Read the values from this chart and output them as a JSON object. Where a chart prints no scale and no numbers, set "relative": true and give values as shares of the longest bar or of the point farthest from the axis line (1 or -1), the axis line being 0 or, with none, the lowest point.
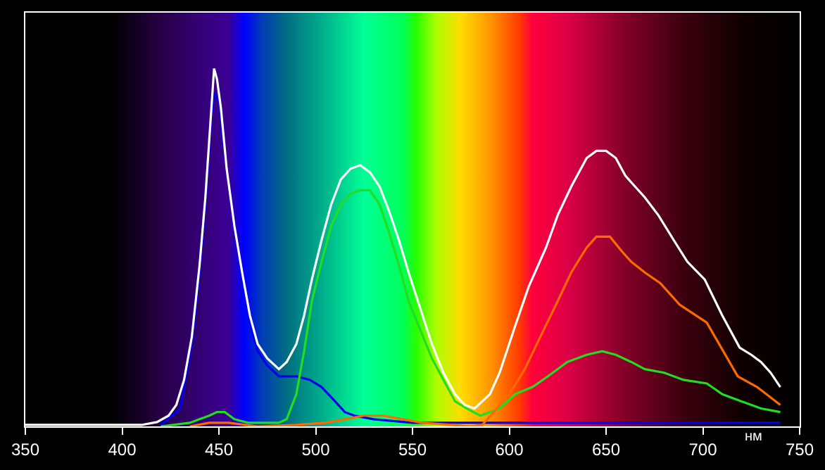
{
  "chart_data": {
    "type": "line",
    "relative": true,
    "xlabel": "нм",
    "xlim": [
      350,
      750
    ],
    "xticks": [
      350,
      400,
      450,
      500,
      550,
      600,
      650,
      700,
      750
    ],
    "grid": false,
    "marker": "none",
    "line_style": "solid",
    "series": [
      {
        "color": "#ffffff",
        "x": [
          350,
          410,
          418,
          424,
          428,
          432,
          436,
          440,
          443,
          446,
          447.5,
          449,
          451,
          454,
          458,
          462,
          466,
          470,
          475,
          481,
          485,
          490,
          494,
          498,
          503,
          508,
          513,
          518,
          523,
          528,
          533,
          538,
          543,
          548,
          554,
          560,
          566,
          572,
          577,
          582,
          590,
          595,
          603,
          610,
          619,
          625,
          632,
          640,
          645,
          650,
          655,
          660,
          665,
          670,
          677,
          685,
          692,
          701,
          710,
          719,
          725,
          730,
          735,
          740
        ],
        "values": [
          0.004,
          0.004,
          0.012,
          0.03,
          0.06,
          0.13,
          0.25,
          0.45,
          0.64,
          0.88,
          1,
          0.97,
          0.89,
          0.72,
          0.56,
          0.43,
          0.31,
          0.23,
          0.19,
          0.16,
          0.18,
          0.23,
          0.31,
          0.41,
          0.52,
          0.62,
          0.69,
          0.72,
          0.73,
          0.71,
          0.67,
          0.6,
          0.52,
          0.43,
          0.33,
          0.23,
          0.15,
          0.09,
          0.06,
          0.05,
          0.09,
          0.15,
          0.28,
          0.39,
          0.5,
          0.59,
          0.67,
          0.75,
          0.77,
          0.77,
          0.75,
          0.7,
          0.67,
          0.64,
          0.59,
          0.52,
          0.46,
          0.41,
          0.31,
          0.22,
          0.2,
          0.18,
          0.15,
          0.11
        ]
      },
      {
        "color": "#ff6a00",
        "x": [
          435,
          445,
          450,
          455,
          470,
          490,
          505,
          515,
          525,
          535,
          545,
          555,
          570,
          580,
          586,
          592,
          600,
          608,
          616,
          625,
          632,
          640,
          645,
          652,
          658,
          663,
          670,
          678,
          688,
          702,
          718,
          728,
          740
        ],
        "values": [
          0,
          0.01,
          0.01,
          0.01,
          0,
          0.004,
          0.01,
          0.02,
          0.03,
          0.03,
          0.02,
          0.01,
          0.004,
          0,
          0.004,
          0.04,
          0.09,
          0.16,
          0.25,
          0.35,
          0.43,
          0.5,
          0.53,
          0.53,
          0.49,
          0.46,
          0.43,
          0.4,
          0.34,
          0.29,
          0.14,
          0.11,
          0.06
        ]
      },
      {
        "color": "#22dd22",
        "x": [
          420,
          435,
          440,
          445,
          449,
          453,
          458,
          465,
          475,
          481,
          485,
          490,
          494,
          498,
          503,
          508,
          513,
          518,
          523,
          528,
          533,
          538,
          543,
          548,
          554,
          560,
          566,
          572,
          578,
          585,
          590,
          595,
          603,
          612,
          620,
          630,
          640,
          648,
          655,
          663,
          670,
          680,
          690,
          702,
          710,
          720,
          730,
          740
        ],
        "values": [
          0,
          0.01,
          0.02,
          0.03,
          0.04,
          0.04,
          0.02,
          0.01,
          0.01,
          0.01,
          0.02,
          0.09,
          0.21,
          0.35,
          0.46,
          0.56,
          0.62,
          0.65,
          0.66,
          0.66,
          0.62,
          0.54,
          0.45,
          0.35,
          0.27,
          0.19,
          0.13,
          0.07,
          0.05,
          0.03,
          0.04,
          0.05,
          0.09,
          0.11,
          0.14,
          0.18,
          0.2,
          0.21,
          0.2,
          0.18,
          0.16,
          0.15,
          0.13,
          0.12,
          0.09,
          0.07,
          0.05,
          0.04
        ]
      },
      {
        "color": "#0000ee",
        "x": [
          420,
          430,
          436,
          440,
          443,
          446,
          447.5,
          450,
          453,
          458,
          462,
          466,
          470,
          475,
          481,
          490,
          497,
          503,
          510,
          515,
          520,
          530,
          550,
          600,
          650,
          700,
          740
        ],
        "values": [
          0.004,
          0.05,
          0.23,
          0.43,
          0.62,
          0.86,
          0.93,
          0.91,
          0.76,
          0.56,
          0.41,
          0.29,
          0.21,
          0.17,
          0.14,
          0.14,
          0.13,
          0.11,
          0.07,
          0.04,
          0.03,
          0.02,
          0.01,
          0.01,
          0.01,
          0.01,
          0.01
        ]
      }
    ]
  }
}
